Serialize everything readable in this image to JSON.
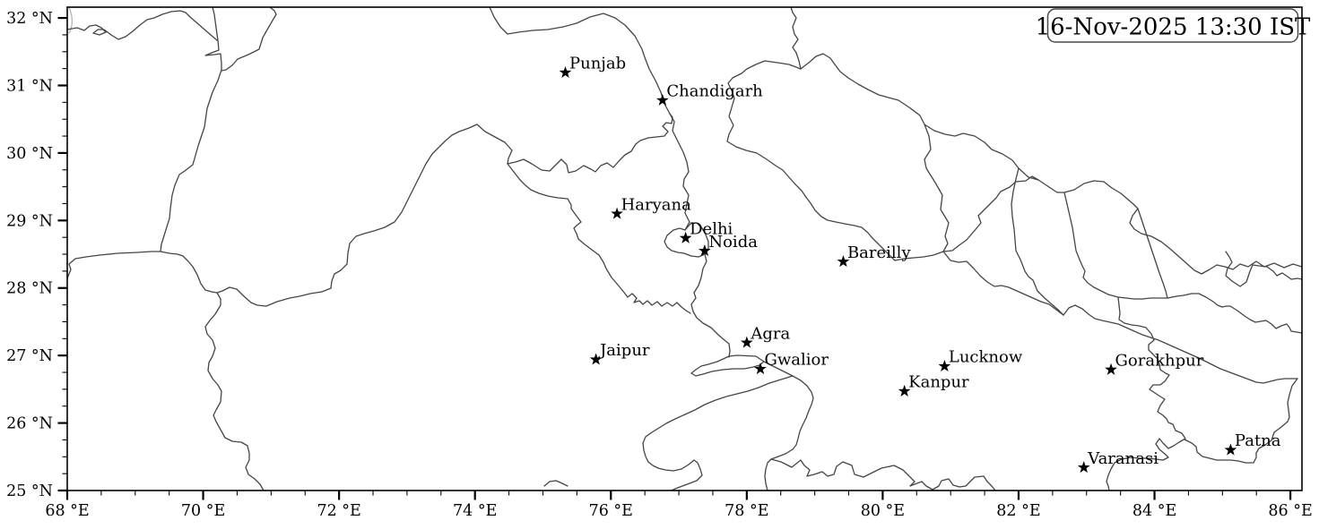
{
  "figure": {
    "timestamp_label": "16-Nov-2025 13:30 IST",
    "background_color": "#ffffff",
    "boundary_color": "#454545",
    "boundary_light_color": "#b3b3b3",
    "frame_color": "#000000",
    "marker_shape": "star",
    "marker_color": "#000000"
  },
  "axes": {
    "xlim": [
      68.0,
      86.17
    ],
    "ylim": [
      25.0,
      32.16
    ],
    "x_axis_side": "bottom",
    "y_axis_side": "left",
    "x_minor_step": 0.5,
    "y_minor_step": 0.25,
    "x_major_ticks": [
      {
        "value": 68,
        "label": "68 °E"
      },
      {
        "value": 70,
        "label": "70 °E"
      },
      {
        "value": 72,
        "label": "72 °E"
      },
      {
        "value": 74,
        "label": "74 °E"
      },
      {
        "value": 76,
        "label": "76 °E"
      },
      {
        "value": 78,
        "label": "78 °E"
      },
      {
        "value": 80,
        "label": "80 °E"
      },
      {
        "value": 82,
        "label": "82 °E"
      },
      {
        "value": 84,
        "label": "84 °E"
      },
      {
        "value": 86,
        "label": "86 °E"
      }
    ],
    "y_major_ticks": [
      {
        "value": 25,
        "label": "25 °N"
      },
      {
        "value": 26,
        "label": "26 °N"
      },
      {
        "value": 27,
        "label": "27 °N"
      },
      {
        "value": 28,
        "label": "28 °N"
      },
      {
        "value": 29,
        "label": "29 °N"
      },
      {
        "value": 30,
        "label": "30 °N"
      },
      {
        "value": 31,
        "label": "31 °N"
      },
      {
        "value": 32,
        "label": "32 °N"
      }
    ]
  },
  "cities": [
    {
      "name": "Punjab",
      "lon": 75.33,
      "lat": 31.19
    },
    {
      "name": "Chandigarh",
      "lon": 76.76,
      "lat": 30.78
    },
    {
      "name": "Haryana",
      "lon": 76.09,
      "lat": 29.1
    },
    {
      "name": "Delhi",
      "lon": 77.1,
      "lat": 28.74
    },
    {
      "name": "Noida",
      "lon": 77.38,
      "lat": 28.55
    },
    {
      "name": "Bareilly",
      "lon": 79.42,
      "lat": 28.39
    },
    {
      "name": "Agra",
      "lon": 78.0,
      "lat": 27.19
    },
    {
      "name": "Jaipur",
      "lon": 75.78,
      "lat": 26.94
    },
    {
      "name": "Gwalior",
      "lon": 78.2,
      "lat": 26.8
    },
    {
      "name": "Lucknow",
      "lon": 80.91,
      "lat": 26.84
    },
    {
      "name": "Kanpur",
      "lon": 80.32,
      "lat": 26.47
    },
    {
      "name": "Gorakhpur",
      "lon": 83.36,
      "lat": 26.79
    },
    {
      "name": "Varanasi",
      "lon": 82.96,
      "lat": 25.34
    },
    {
      "name": "Patna",
      "lon": 85.12,
      "lat": 25.6
    }
  ]
}
